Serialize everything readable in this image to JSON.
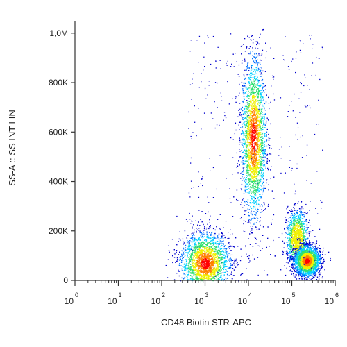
{
  "chart_data": {
    "type": "scatter",
    "subtype": "flow-cytometry-density-dot-plot",
    "title": "",
    "xlabel": "CD48 Biotin STR-APC",
    "ylabel": "SS-A :: SS INT LIN",
    "x_scale": "log",
    "xlim": [
      1,
      1000000
    ],
    "ylim": [
      0,
      1050000
    ],
    "x_ticks": [
      {
        "base": "10",
        "exp": "0",
        "value": 1
      },
      {
        "base": "10",
        "exp": "1",
        "value": 10
      },
      {
        "base": "10",
        "exp": "2",
        "value": 100
      },
      {
        "base": "10",
        "exp": "3",
        "value": 1000
      },
      {
        "base": "10",
        "exp": "4",
        "value": 10000
      },
      {
        "base": "10",
        "exp": "5",
        "value": 100000
      },
      {
        "base": "10",
        "exp": "6",
        "value": 1000000
      }
    ],
    "y_ticks": [
      {
        "label": "0",
        "value": 0
      },
      {
        "label": "200K",
        "value": 200000
      },
      {
        "label": "400K",
        "value": 400000
      },
      {
        "label": "600K",
        "value": 600000
      },
      {
        "label": "800K",
        "value": 800000
      },
      {
        "label": "1,0M",
        "value": 1000000
      }
    ],
    "grid": false,
    "colormap": [
      "#0000cc",
      "#0070ff",
      "#00d0ff",
      "#30e070",
      "#f0f000",
      "#ff8000",
      "#ff0000"
    ],
    "populations": [
      {
        "x_center": 1000,
        "y_center": 70000,
        "x_spread_decades": 0.28,
        "y_spread": 60000,
        "density": "high"
      },
      {
        "x_center": 13000,
        "y_center": 580000,
        "x_spread_decades": 0.14,
        "y_spread": 160000,
        "density": "high"
      },
      {
        "x_center": 130000,
        "y_center": 170000,
        "x_spread_decades": 0.12,
        "y_spread": 55000,
        "density": "medium"
      },
      {
        "x_center": 220000,
        "y_center": 80000,
        "x_spread_decades": 0.15,
        "y_spread": 30000,
        "density": "high"
      }
    ]
  }
}
